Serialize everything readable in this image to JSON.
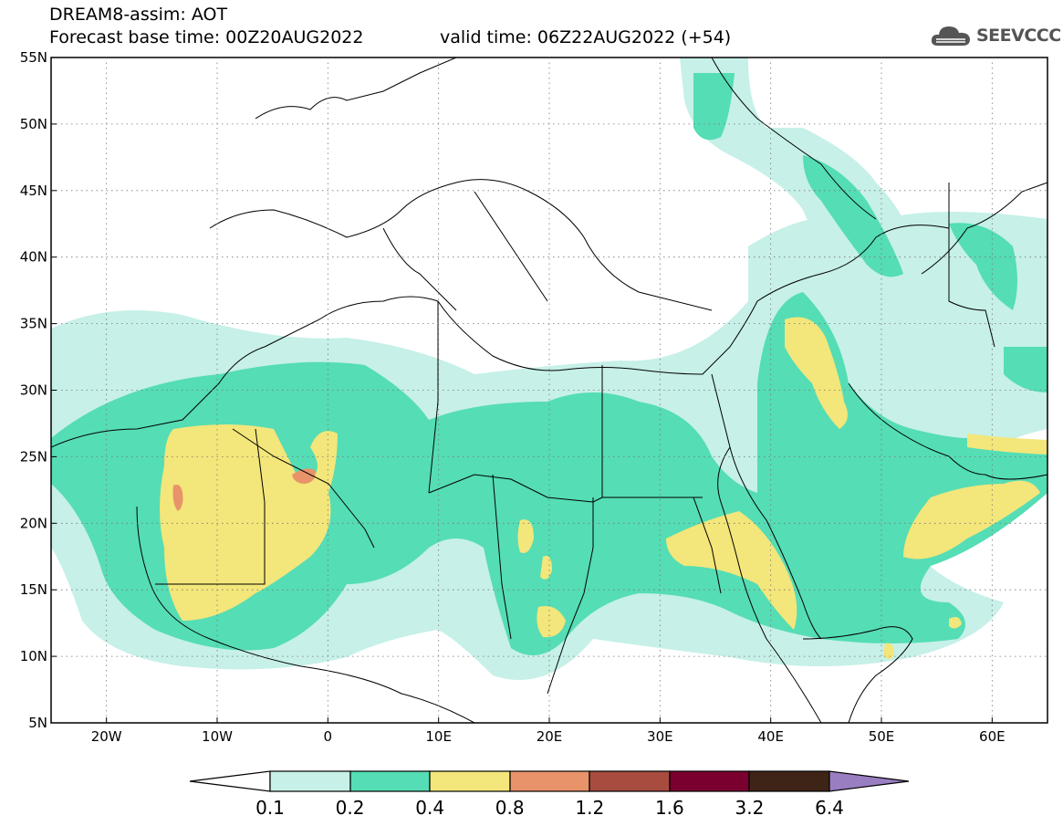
{
  "header": {
    "title": "DREAM8-assim: AOT",
    "base_time": "Forecast base time: 00Z20AUG2022",
    "valid_time": "valid time: 06Z22AUG2022 (+54)"
  },
  "logo": {
    "text": "SEEVCCC",
    "icon": "cloud-icon"
  },
  "axes": {
    "lat_labels": [
      "55N",
      "50N",
      "45N",
      "40N",
      "35N",
      "30N",
      "25N",
      "20N",
      "15N",
      "10N",
      "5N"
    ],
    "lon_labels": [
      "20W",
      "10W",
      "0",
      "10E",
      "20E",
      "30E",
      "40E",
      "50E",
      "60E"
    ],
    "lat_range": [
      5,
      55
    ],
    "lon_range": [
      -25,
      65
    ]
  },
  "colorbar": {
    "labels": [
      "0.1",
      "0.2",
      "0.4",
      "0.8",
      "1.2",
      "1.6",
      "3.2",
      "6.4"
    ],
    "colors": {
      "below": "#ffffff",
      "c1": "#c6f0e8",
      "c2": "#55ddb5",
      "c3": "#f3e67a",
      "c4": "#e8936a",
      "c5": "#a84c40",
      "c6": "#7a0030",
      "c7": "#3e2416",
      "above": "#9a7ec2"
    }
  }
}
